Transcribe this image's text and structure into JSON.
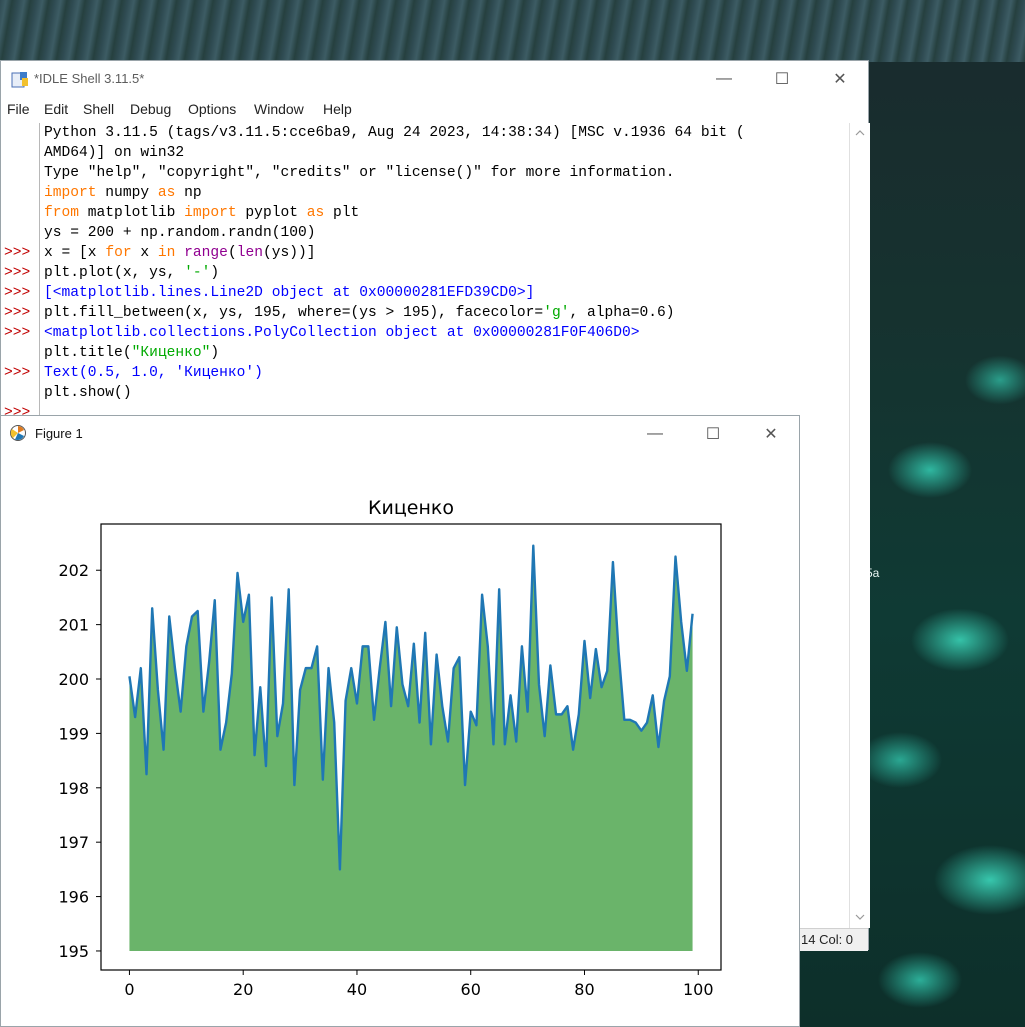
{
  "idle": {
    "title": "*IDLE Shell 3.11.5*",
    "controls": {
      "minimize": "—",
      "maximize": "☐",
      "close": "✕"
    },
    "menu": [
      "File",
      "Edit",
      "Shell",
      "Debug",
      "Options",
      "Window",
      "Help"
    ],
    "shell": {
      "banner": [
        "Python 3.11.5 (tags/v3.11.5:cce6ba9, Aug 24 2023, 14:38:34) [MSC v.1936 64 bit (",
        "AMD64)] on win32",
        "Type \"help\", \"copyright\", \"credits\" or \"license()\" for more information."
      ],
      "prompt": ">>>",
      "line1": {
        "a": "import",
        "b": " numpy ",
        "c": "as",
        "d": " np"
      },
      "line2": {
        "a": "from",
        "b": " matplotlib ",
        "c": "import",
        "d": " pyplot ",
        "e": "as",
        "f": " plt"
      },
      "line3": "ys = 200 + np.random.randn(100)",
      "line4": {
        "a": "x = [x ",
        "b": "for",
        "c": " x ",
        "d": "in",
        "e": " ",
        "f": "range",
        "g": "(",
        "h": "len",
        "i": "(ys))]"
      },
      "line5": {
        "a": "plt.plot(x, ys, ",
        "b": "'-'",
        "c": ")"
      },
      "out5": "[<matplotlib.lines.Line2D object at 0x00000281EFD39CD0>]",
      "line6": {
        "a": "plt.fill_between(x, ys, 195, where=(ys > 195), facecolor=",
        "b": "'g'",
        "c": ", alpha=0.6)"
      },
      "out6": "<matplotlib.collections.PolyCollection object at 0x00000281F0F406D0>",
      "line7": {
        "a": "plt.title(",
        "b": "\"Киценко\"",
        "c": ")"
      },
      "out7": "Text(0.5, 1.0, 'Киценко')",
      "line8": "plt.show()"
    },
    "status": "14  Col: 0"
  },
  "desktop": {
    "partial_label": "5a"
  },
  "figure": {
    "title": "Figure 1",
    "controls": {
      "minimize": "—",
      "maximize": "☐",
      "close": "✕"
    }
  },
  "colors": {
    "line": "#1f77b4",
    "fill": "#6ab46a",
    "prompt": "#c00000",
    "keyword": "#ff7700",
    "builtin": "#900090",
    "string": "#00aa00",
    "output": "#0000ff"
  },
  "chart_data": {
    "type": "area",
    "title": "Киценко",
    "xlabel": "",
    "ylabel": "",
    "xlim": [
      -5,
      104
    ],
    "ylim": [
      194.65,
      202.85
    ],
    "fill_baseline": 195,
    "xticks": [
      0,
      20,
      40,
      60,
      80,
      100
    ],
    "yticks": [
      195,
      196,
      197,
      198,
      199,
      200,
      201,
      202
    ],
    "x": [
      0,
      1,
      2,
      3,
      4,
      5,
      6,
      7,
      8,
      9,
      10,
      11,
      12,
      13,
      14,
      15,
      16,
      17,
      18,
      19,
      20,
      21,
      22,
      23,
      24,
      25,
      26,
      27,
      28,
      29,
      30,
      31,
      32,
      33,
      34,
      35,
      36,
      37,
      38,
      39,
      40,
      41,
      42,
      43,
      44,
      45,
      46,
      47,
      48,
      49,
      50,
      51,
      52,
      53,
      54,
      55,
      56,
      57,
      58,
      59,
      60,
      61,
      62,
      63,
      64,
      65,
      66,
      67,
      68,
      69,
      70,
      71,
      72,
      73,
      74,
      75,
      76,
      77,
      78,
      79,
      80,
      81,
      82,
      83,
      84,
      85,
      86,
      87,
      88,
      89,
      90,
      91,
      92,
      93,
      94,
      95,
      96,
      97,
      98,
      99
    ],
    "y": [
      200.05,
      199.3,
      200.2,
      198.25,
      201.3,
      199.8,
      198.7,
      201.15,
      200.2,
      199.4,
      200.6,
      201.15,
      201.25,
      199.4,
      200.3,
      201.45,
      198.7,
      199.2,
      200.1,
      201.95,
      201.05,
      201.55,
      198.6,
      199.85,
      198.4,
      201.5,
      198.95,
      199.55,
      201.65,
      198.05,
      199.8,
      200.2,
      200.2,
      200.6,
      198.15,
      200.2,
      199.2,
      196.5,
      199.6,
      200.2,
      199.55,
      200.6,
      200.6,
      199.25,
      200.2,
      201.05,
      199.5,
      200.95,
      199.9,
      199.5,
      200.65,
      199.2,
      200.85,
      198.8,
      200.45,
      199.5,
      198.85,
      200.2,
      200.4,
      198.05,
      199.4,
      199.15,
      201.55,
      200.6,
      198.8,
      201.65,
      198.8,
      199.7,
      198.85,
      200.6,
      199.4,
      202.45,
      199.9,
      198.95,
      200.25,
      199.35,
      199.35,
      199.5,
      198.7,
      199.35,
      200.7,
      199.65,
      200.55,
      199.85,
      200.15,
      202.15,
      200.5,
      199.25,
      199.25,
      199.2,
      199.05,
      199.2,
      199.7,
      198.75,
      199.6,
      200.05,
      202.25,
      201.05,
      200.15,
      201.2
    ]
  }
}
